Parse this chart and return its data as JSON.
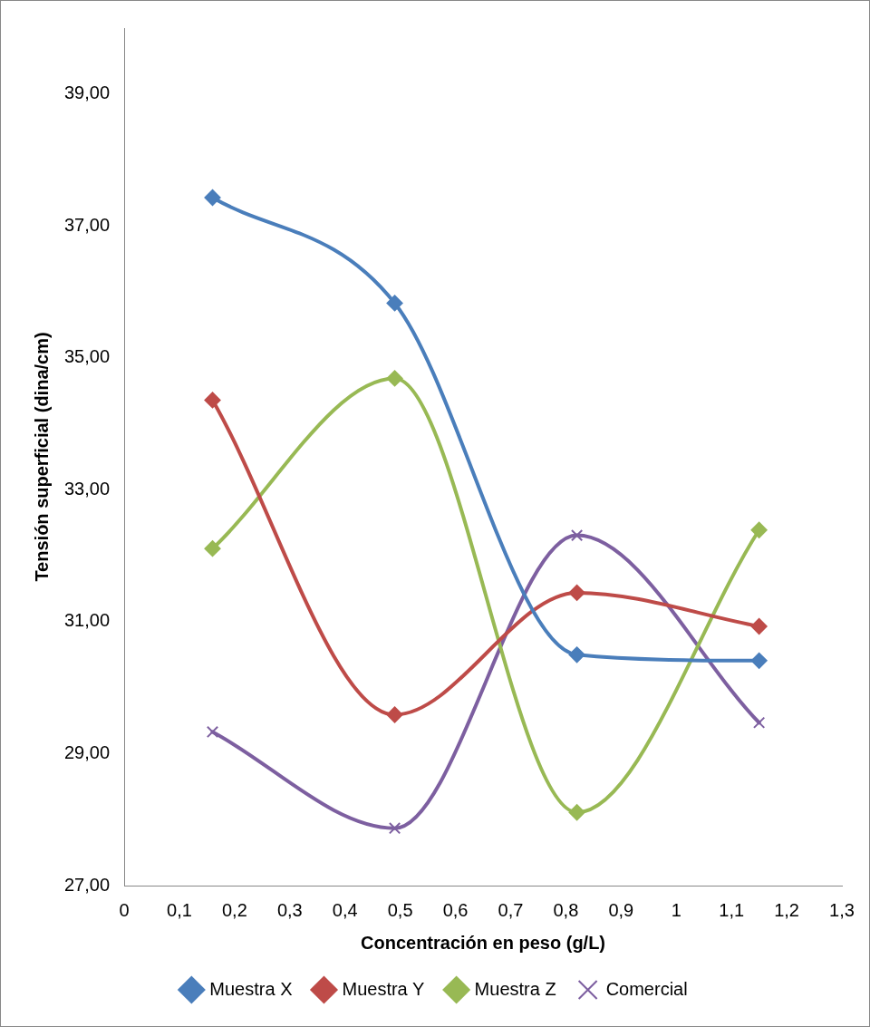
{
  "chart_data": {
    "type": "line",
    "xlabel": "Concentración en peso (g/L)",
    "ylabel": "Tensión superficial (dina/cm)",
    "xlim": [
      0,
      1.3
    ],
    "xticks": [
      0,
      {
        "value": 0.1,
        "label": "0,1"
      },
      {
        "value": 0.2,
        "label": "0,2"
      },
      {
        "value": 0.3,
        "label": "0,3"
      },
      {
        "value": 0.4,
        "label": "0,4"
      },
      {
        "value": 0.5,
        "label": "0,5"
      },
      {
        "value": 0.6,
        "label": "0,6"
      },
      {
        "value": 0.7,
        "label": "0,7"
      },
      {
        "value": 0.8,
        "label": "0,8"
      },
      {
        "value": 0.9,
        "label": "0,9"
      },
      1,
      {
        "value": 1.1,
        "label": "1,1"
      },
      {
        "value": 1.2,
        "label": "1,2"
      },
      {
        "value": 1.3,
        "label": "1,3"
      }
    ],
    "ylim": [
      27,
      40
    ],
    "yticks": [
      {
        "value": 27,
        "label": "27,00"
      },
      {
        "value": 29,
        "label": "29,00"
      },
      {
        "value": 31,
        "label": "31,00"
      },
      {
        "value": 33,
        "label": "33,00"
      },
      {
        "value": 35,
        "label": "35,00"
      },
      {
        "value": 37,
        "label": "37,00"
      },
      {
        "value": 39,
        "label": "39,00"
      }
    ],
    "x": [
      0.16,
      0.49,
      0.82,
      1.15
    ],
    "grid": false,
    "legend": "bottom",
    "series": [
      {
        "name": "Muestra X",
        "color": "#4a7ebb",
        "marker": "diamond",
        "values": [
          37.43,
          35.83,
          30.5,
          30.41
        ]
      },
      {
        "name": "Muestra Y",
        "color": "#be4b48",
        "marker": "diamond",
        "values": [
          34.36,
          29.59,
          31.44,
          30.93
        ]
      },
      {
        "name": "Muestra Z",
        "color": "#98b954",
        "marker": "diamond",
        "values": [
          32.11,
          34.69,
          28.11,
          32.39
        ]
      },
      {
        "name": "Comercial",
        "color": "#7d5fa0",
        "marker": "cross",
        "values": [
          29.33,
          27.87,
          32.31,
          29.47
        ]
      }
    ]
  }
}
